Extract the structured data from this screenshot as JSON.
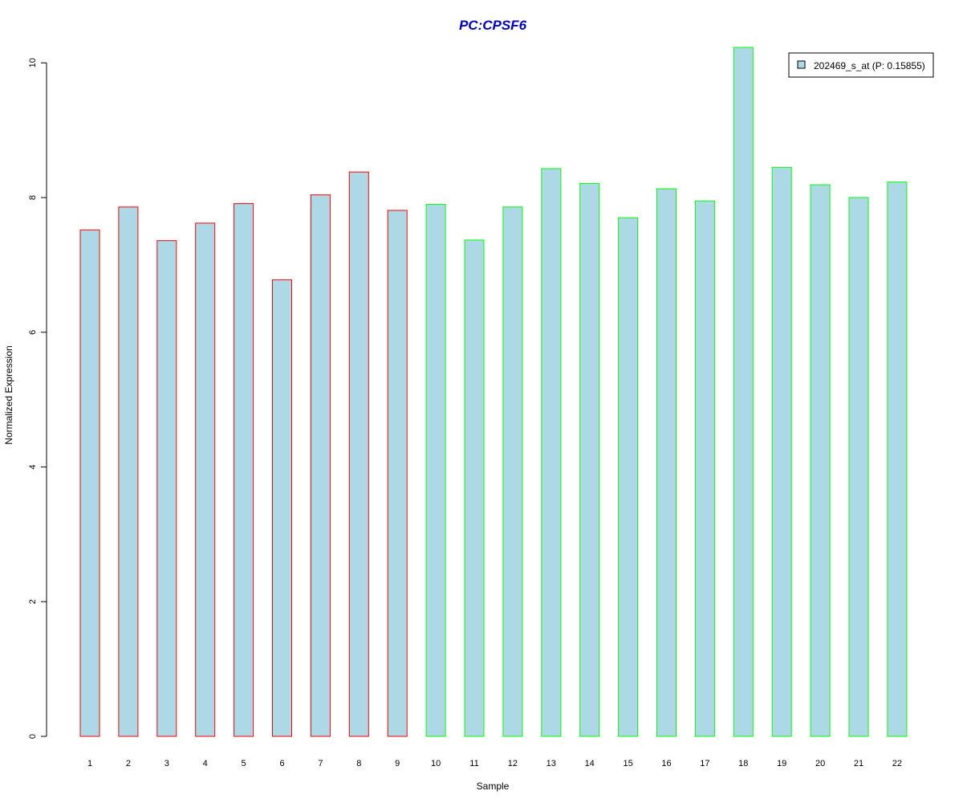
{
  "chart_data": {
    "type": "bar",
    "title": "PC:CPSF6",
    "xlabel": "Sample",
    "ylabel": "Normalized Expression",
    "categories": [
      "1",
      "2",
      "3",
      "4",
      "5",
      "6",
      "7",
      "8",
      "9",
      "10",
      "11",
      "12",
      "13",
      "14",
      "15",
      "16",
      "17",
      "18",
      "19",
      "20",
      "21",
      "22"
    ],
    "series": [
      {
        "name": "202469_s_at (P: 0.15855)",
        "values": [
          7.52,
          7.86,
          7.36,
          7.62,
          7.91,
          6.78,
          8.04,
          8.38,
          7.81,
          7.9,
          7.37,
          7.86,
          8.43,
          8.21,
          7.7,
          8.13,
          7.95,
          10.23,
          8.45,
          8.19,
          8.0,
          8.23
        ]
      }
    ],
    "ylim": [
      0,
      10.23
    ],
    "yticks": [
      "0",
      "2",
      "4",
      "6",
      "8",
      "10"
    ],
    "grid": false,
    "legend_position": "top-right",
    "colors": {
      "title": "#0000cc",
      "bar_fill": "#add8e6",
      "group1_border": "#ff0000",
      "group2_border": "#00ff00",
      "group1_count": 9
    }
  }
}
